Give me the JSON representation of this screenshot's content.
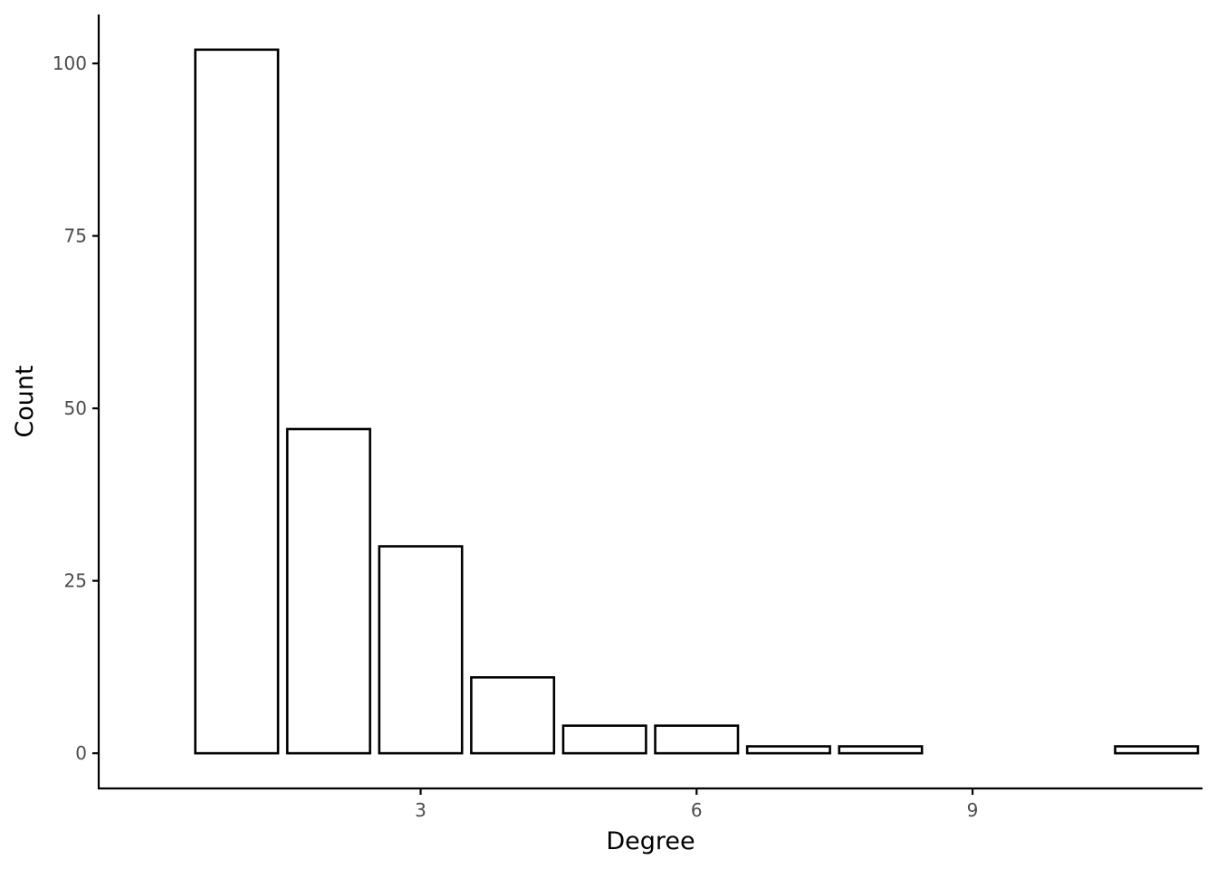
{
  "chart_data": {
    "type": "bar",
    "xlabel": "Degree",
    "ylabel": "Count",
    "x": [
      1,
      2,
      3,
      4,
      5,
      6,
      7,
      8,
      11
    ],
    "values": [
      102,
      47,
      30,
      11,
      4,
      4,
      1,
      1,
      1
    ],
    "xlim": [
      -0.5,
      11.5
    ],
    "ylim": [
      -5.1,
      107.1
    ],
    "xticks": [
      3,
      6,
      9
    ],
    "xtick_labels": [
      "3",
      "6",
      "9"
    ],
    "yticks": [
      0,
      25,
      50,
      75,
      100
    ],
    "ytick_labels": [
      "0",
      "25",
      "50",
      "75",
      "100"
    ],
    "bar_width": 0.9,
    "grid": false,
    "legend": "none",
    "colors": {
      "bar_fill": "#ffffff",
      "bar_stroke": "#000000",
      "axis": "#000000",
      "tick_label": "#4d4d4d",
      "axis_title": "#000000"
    }
  }
}
